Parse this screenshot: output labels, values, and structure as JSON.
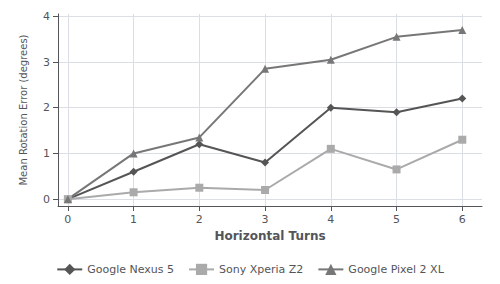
{
  "chart_data": {
    "type": "line",
    "xlabel": "Horizontal Turns",
    "ylabel": "Mean Rotation Error (degrees)",
    "x": [
      0,
      1,
      2,
      3,
      4,
      5,
      6
    ],
    "series": [
      {
        "name": "Google Nexus 5",
        "color": "#555555",
        "marker": "diamond",
        "values": [
          0.0,
          0.6,
          1.2,
          0.8,
          2.0,
          1.9,
          2.2
        ]
      },
      {
        "name": "Sony Xperia Z2",
        "color": "#aaaaaa",
        "marker": "square",
        "values": [
          0.0,
          0.15,
          0.25,
          0.2,
          1.1,
          0.65,
          1.3
        ]
      },
      {
        "name": "Google Pixel 2 XL",
        "color": "#777777",
        "marker": "triangle",
        "values": [
          0.0,
          1.0,
          1.35,
          2.85,
          3.05,
          3.55,
          3.7
        ]
      }
    ],
    "xlim": [
      -0.15,
      6.3
    ],
    "ylim": [
      -0.15,
      4.05
    ],
    "xticks": [
      0,
      1,
      2,
      3,
      4,
      5,
      6
    ],
    "yticks": [
      0,
      1,
      2,
      3,
      4
    ],
    "grid": true,
    "legend": "bottom"
  }
}
